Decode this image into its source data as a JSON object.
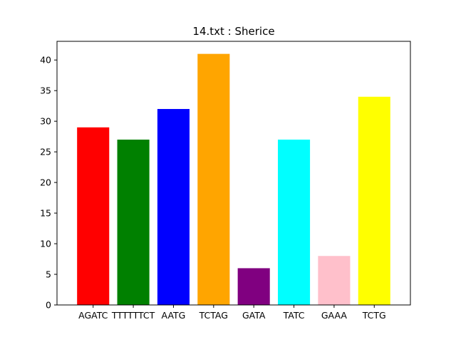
{
  "chart_data": {
    "type": "bar",
    "title": "14.txt : Sherice",
    "xlabel": "",
    "ylabel": "",
    "categories": [
      "AGATC",
      "TTTTTTCT",
      "AATG",
      "TCTAG",
      "GATA",
      "TATC",
      "GAAA",
      "TCTG"
    ],
    "values": [
      29,
      27,
      32,
      41,
      6,
      27,
      8,
      34
    ],
    "colors": [
      "#ff0000",
      "#008000",
      "#0000ff",
      "#ffa500",
      "#800080",
      "#00ffff",
      "#ffc0cb",
      "#ffff00"
    ],
    "ylim": [
      0,
      43.05
    ],
    "yticks": [
      0,
      5,
      10,
      15,
      20,
      25,
      30,
      35,
      40
    ],
    "grid": false,
    "legend": "none"
  }
}
